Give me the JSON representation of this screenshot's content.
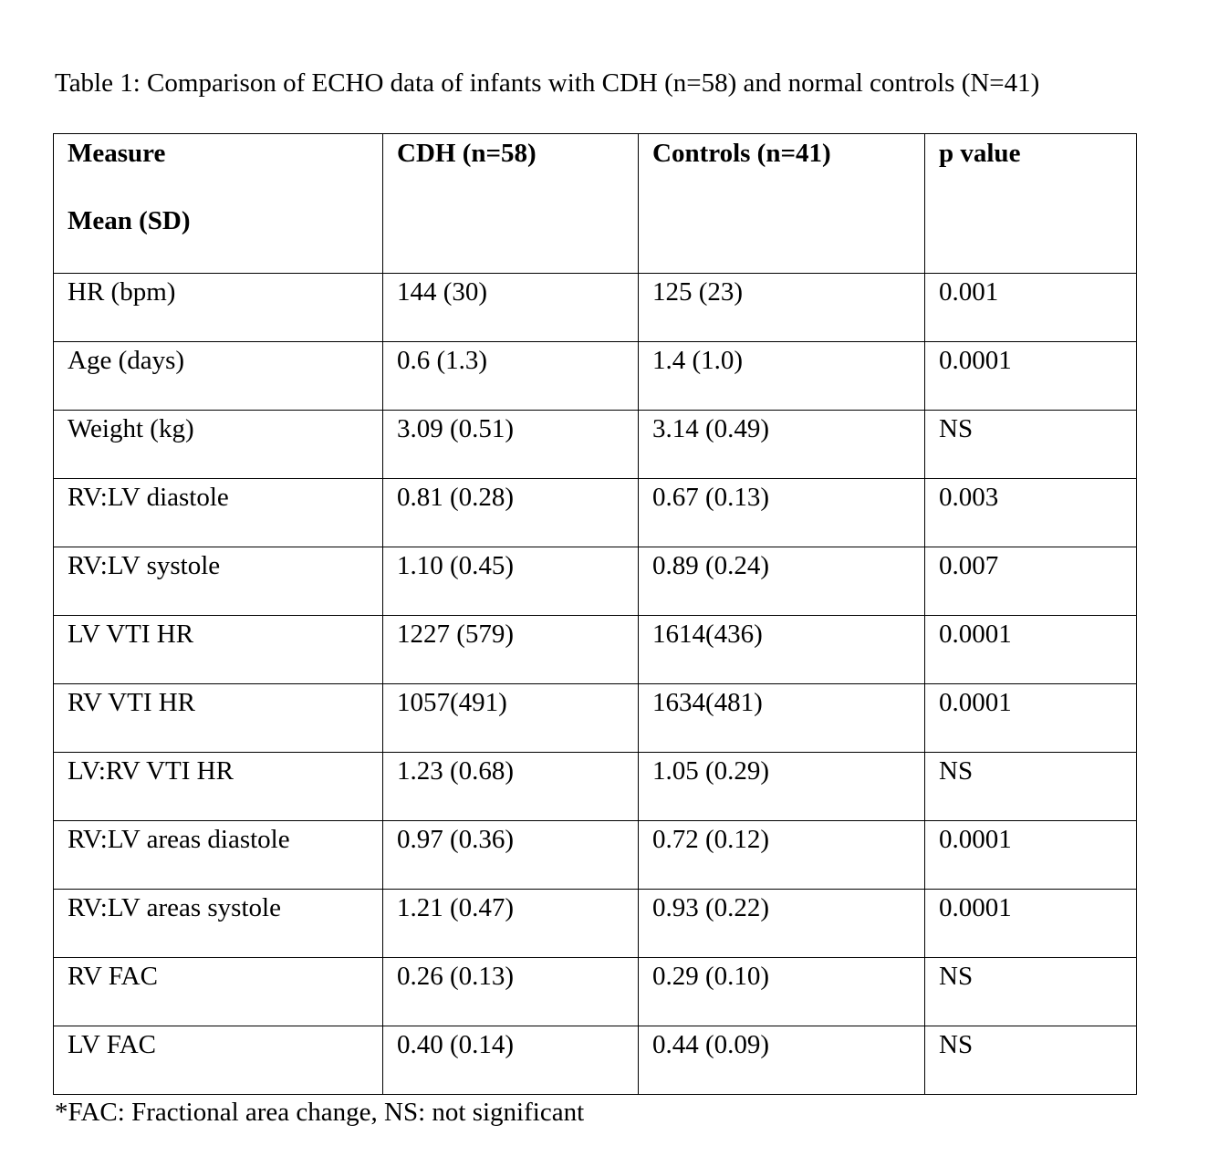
{
  "caption": "Table 1: Comparison of ECHO data of infants with CDH (n=58) and normal controls (N=41)",
  "table": {
    "headers": {
      "measure_line1": "Measure",
      "measure_line2": "Mean (SD)",
      "cdh": "CDH (n=58)",
      "controls": "Controls (n=41)",
      "p_value": "p value"
    },
    "rows": [
      {
        "measure": "HR (bpm)",
        "cdh": "144 (30)",
        "controls": "125 (23)",
        "p": "0.001"
      },
      {
        "measure": "Age (days)",
        "cdh": "0.6 (1.3)",
        "controls": "1.4 (1.0)",
        "p": "0.0001"
      },
      {
        "measure": "Weight (kg)",
        "cdh": "3.09 (0.51)",
        "controls": "3.14 (0.49)",
        "p": "NS"
      },
      {
        "measure": "RV:LV diastole",
        "cdh": "0.81 (0.28)",
        "controls": "0.67 (0.13)",
        "p": "0.003"
      },
      {
        "measure": "RV:LV systole",
        "cdh": "1.10 (0.45)",
        "controls": "0.89 (0.24)",
        "p": "0.007"
      },
      {
        "measure": "LV VTI HR",
        "cdh": "1227 (579)",
        "controls": "1614(436)",
        "p": "0.0001"
      },
      {
        "measure": "RV VTI HR",
        "cdh": "1057(491)",
        "controls": "1634(481)",
        "p": "0.0001"
      },
      {
        "measure": "LV:RV VTI HR",
        "cdh": "1.23 (0.68)",
        "controls": "1.05 (0.29)",
        "p": "NS"
      },
      {
        "measure": "RV:LV areas diastole",
        "cdh": "0.97 (0.36)",
        "controls": "0.72 (0.12)",
        "p": "0.0001"
      },
      {
        "measure": "RV:LV areas systole",
        "cdh": "1.21 (0.47)",
        "controls": "0.93 (0.22)",
        "p": "0.0001"
      },
      {
        "measure": "RV FAC",
        "cdh": "0.26 (0.13)",
        "controls": "0.29 (0.10)",
        "p": "NS"
      },
      {
        "measure": "LV FAC",
        "cdh": "0.40 (0.14)",
        "controls": "0.44 (0.09)",
        "p": "NS"
      }
    ]
  },
  "footnote": "*FAC: Fractional area change, NS: not significant"
}
